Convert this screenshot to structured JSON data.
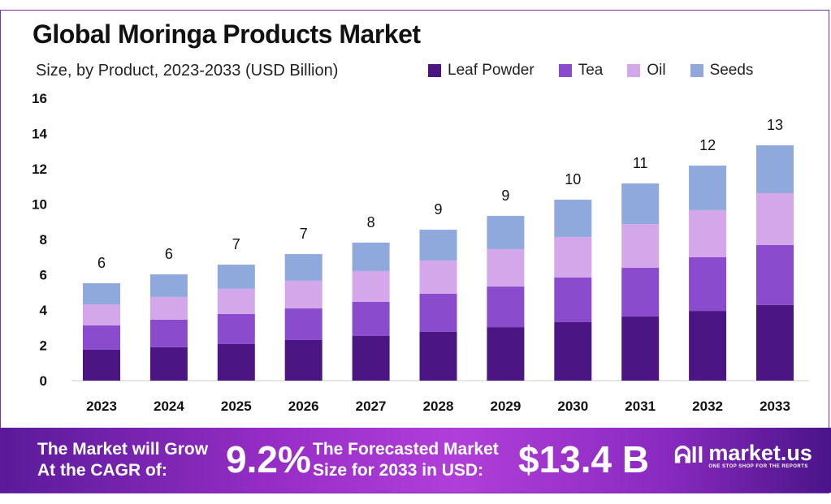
{
  "chart_data": {
    "type": "bar",
    "stacked": true,
    "title": "Global Moringa Products Market",
    "subtitle": "Size, by Product, 2023-2033 (USD Billion)",
    "xlabel": "",
    "ylabel": "",
    "ylim": [
      0,
      16
    ],
    "yticks": [
      0,
      2,
      4,
      6,
      8,
      10,
      12,
      14,
      16
    ],
    "grid": false,
    "legend_position": "top-right",
    "categories": [
      "2023",
      "2024",
      "2025",
      "2026",
      "2027",
      "2028",
      "2029",
      "2030",
      "2031",
      "2032",
      "2033"
    ],
    "series": [
      {
        "name": "Leaf Powder",
        "color": "#4b1683",
        "values": [
          1.75,
          1.89,
          2.07,
          2.3,
          2.53,
          2.76,
          3.03,
          3.31,
          3.63,
          3.95,
          4.28
        ]
      },
      {
        "name": "Tea",
        "color": "#8a4bcc",
        "values": [
          1.38,
          1.56,
          1.7,
          1.79,
          1.93,
          2.16,
          2.3,
          2.53,
          2.76,
          3.04,
          3.4
        ]
      },
      {
        "name": "Oil",
        "color": "#d4a6ea",
        "values": [
          1.19,
          1.29,
          1.43,
          1.57,
          1.75,
          1.88,
          2.12,
          2.3,
          2.48,
          2.67,
          2.94
        ]
      },
      {
        "name": "Seeds",
        "color": "#8fa9dc",
        "values": [
          1.2,
          1.28,
          1.37,
          1.51,
          1.61,
          1.75,
          1.88,
          2.11,
          2.3,
          2.52,
          2.71
        ]
      }
    ],
    "total_labels": [
      "6",
      "6",
      "7",
      "7",
      "8",
      "9",
      "9",
      "10",
      "11",
      "12",
      "13"
    ]
  },
  "banner": {
    "cagr_text_1": "The Market will Grow",
    "cagr_text_2": "At the CAGR of:",
    "cagr_value": "9.2%",
    "forecast_text_1": "The Forecasted Market",
    "forecast_text_2": "Size for 2033 in USD:",
    "forecast_value": "$13.4 B",
    "logo_name": "market.us",
    "logo_tagline": "ONE STOP SHOP FOR THE REPORTS"
  }
}
